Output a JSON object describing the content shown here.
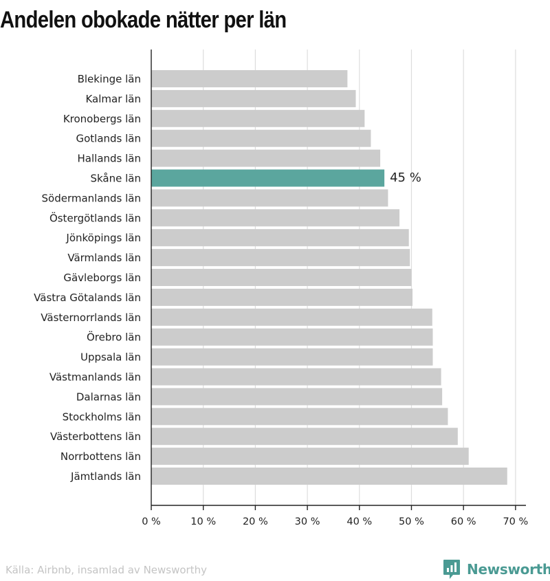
{
  "chart_data": {
    "type": "bar",
    "orientation": "horizontal",
    "title": "Andelen obokade nätter per län",
    "categories": [
      "Blekinge län",
      "Kalmar län",
      "Kronobergs län",
      "Gotlands län",
      "Hallands län",
      "Skåne län",
      "Södermanlands län",
      "Östergötlands län",
      "Jönköpings län",
      "Värmlands län",
      "Gävleborgs län",
      "Västra Götalands län",
      "Västernorrlands län",
      "Örebro län",
      "Uppsala län",
      "Västmanlands län",
      "Dalarnas län",
      "Stockholms län",
      "Västerbottens län",
      "Norrbottens län",
      "Jämtlands län"
    ],
    "values": [
      37.7,
      39.3,
      41.0,
      42.2,
      44.0,
      44.8,
      45.5,
      47.7,
      49.5,
      49.7,
      50.0,
      50.2,
      54.0,
      54.1,
      54.1,
      55.7,
      55.9,
      57.0,
      58.9,
      61.0,
      68.4
    ],
    "highlight_index": 5,
    "highlight_label": "45 %",
    "xlim": [
      0,
      72
    ],
    "xticks": [
      0,
      10,
      20,
      30,
      40,
      50,
      60,
      70
    ],
    "xtick_labels": [
      "0 %",
      "10 %",
      "20 %",
      "30 %",
      "40 %",
      "50 %",
      "60 %",
      "70 %"
    ],
    "grid": true,
    "colors": {
      "bar": "#cccccc",
      "highlight": "#5ba69e",
      "grid": "#dddddd",
      "axis": "#222222"
    }
  },
  "footer": {
    "source": "Källa: Airbnb, insamlad av Newsworthy",
    "brand": "Newsworthy",
    "brand_icon": "newsworthy-logo-icon",
    "brand_color": "#4a9a93"
  }
}
